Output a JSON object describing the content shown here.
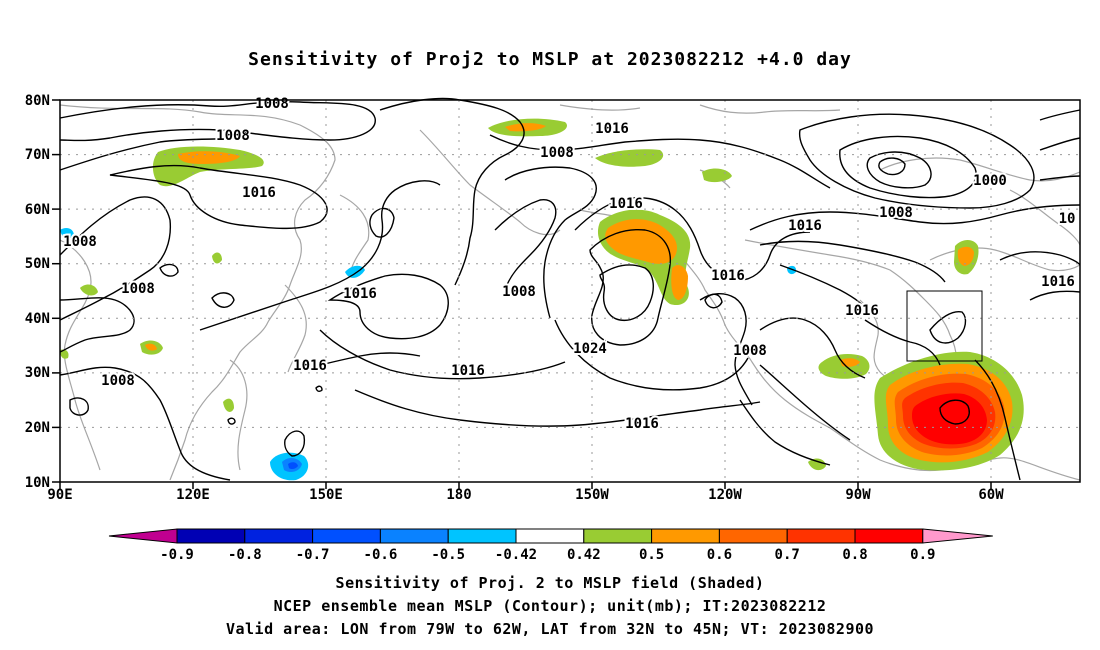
{
  "title": "Sensitivity of Proj2 to MSLP at 2023082212 +4.0 day",
  "lat_labels": [
    "80N",
    "70N",
    "60N",
    "50N",
    "40N",
    "30N",
    "20N",
    "10N"
  ],
  "lon_labels": [
    "90E",
    "120E",
    "150E",
    "180",
    "150W",
    "120W",
    "90W",
    "60W"
  ],
  "contour_labels": [
    "1008",
    "1008",
    "1016",
    "1016",
    "1008",
    "1016",
    "1008",
    "1008",
    "1016",
    "1008",
    "1016",
    "1008",
    "1024",
    "1016",
    "1016",
    "1016",
    "1016",
    "1008",
    "1000",
    "1008",
    "1016",
    "10",
    "1016"
  ],
  "colorbar": {
    "labels": [
      "-0.9",
      "-0.8",
      "-0.7",
      "-0.6",
      "-0.5",
      "-0.42",
      "0.42",
      "0.5",
      "0.6",
      "0.7",
      "0.8",
      "0.9"
    ],
    "colors": [
      "#c00090",
      "#0000b4",
      "#0022e0",
      "#0050ff",
      "#0a82ff",
      "#00c4ff",
      "#ffffff",
      "#99cc33",
      "#ff9900",
      "#ff6600",
      "#ff3300",
      "#ff0000",
      "#ff99cc"
    ]
  },
  "captions": [
    "Sensitivity of Proj. 2 to MSLP field (Shaded)",
    "NCEP ensemble mean MSLP (Contour); unit(mb); IT:2023082212",
    "Valid area: LON from 79W to 62W, LAT from 32N to 45N; VT: 2023082900"
  ],
  "map": {
    "lon_range": [
      90,
      320
    ],
    "lat_range": [
      10,
      80
    ],
    "valid_area": {
      "lon": [
        -79,
        -62
      ],
      "lat": [
        32,
        45
      ]
    }
  }
}
